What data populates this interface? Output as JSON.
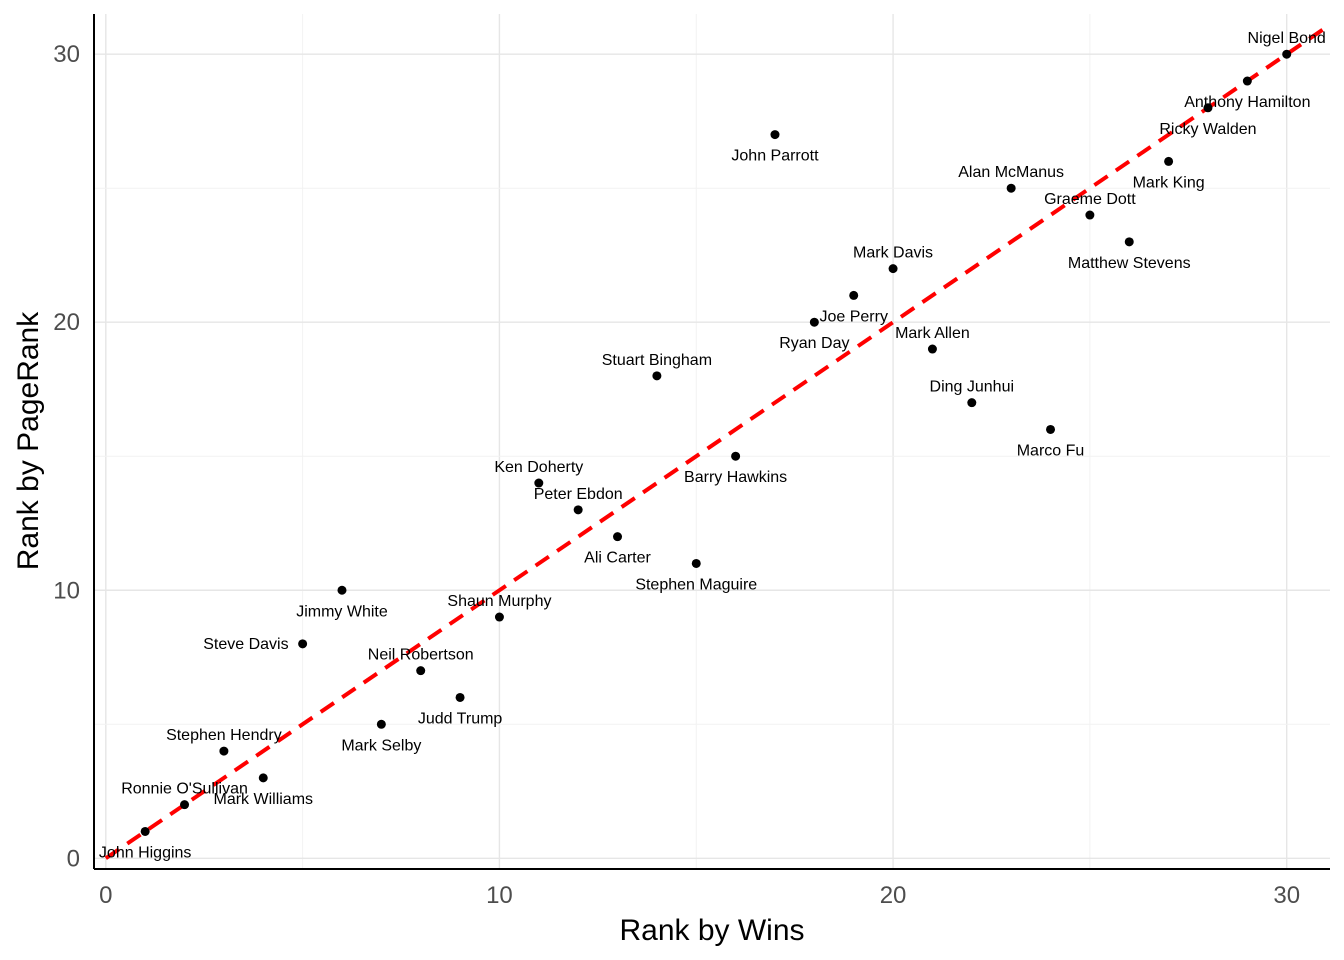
{
  "chart_data": {
    "type": "scatter",
    "xlabel": "Rank by Wins",
    "ylabel": "Rank by PageRank",
    "xlim": [
      -0.3,
      31.1
    ],
    "ylim": [
      -0.4,
      31.5
    ],
    "x_ticks": [
      0,
      10,
      20,
      30
    ],
    "y_ticks": [
      0,
      10,
      20,
      30
    ],
    "grid": true,
    "reference_line": {
      "type": "y=x",
      "color": "#ff0000",
      "style": "dashed",
      "range": [
        0,
        31
      ]
    },
    "points": [
      {
        "x": 1,
        "y": 1,
        "label": "John Higgins",
        "pos": "below"
      },
      {
        "x": 2,
        "y": 2,
        "label": "Ronnie O'Sullivan",
        "pos": "above"
      },
      {
        "x": 3,
        "y": 4,
        "label": "Stephen Hendry",
        "pos": "above"
      },
      {
        "x": 4,
        "y": 3,
        "label": "Mark Williams",
        "pos": "below"
      },
      {
        "x": 5,
        "y": 8,
        "label": "Steve Davis",
        "pos": "left"
      },
      {
        "x": 6,
        "y": 10,
        "label": "Jimmy White",
        "pos": "below"
      },
      {
        "x": 7,
        "y": 5,
        "label": "Mark Selby",
        "pos": "below"
      },
      {
        "x": 8,
        "y": 7,
        "label": "Neil Robertson",
        "pos": "above"
      },
      {
        "x": 9,
        "y": 6,
        "label": "Judd Trump",
        "pos": "below"
      },
      {
        "x": 10,
        "y": 9,
        "label": "Shaun Murphy",
        "pos": "above"
      },
      {
        "x": 11,
        "y": 14,
        "label": "Ken Doherty",
        "pos": "above"
      },
      {
        "x": 12,
        "y": 13,
        "label": "Peter Ebdon",
        "pos": "above"
      },
      {
        "x": 13,
        "y": 12,
        "label": "Ali Carter",
        "pos": "below"
      },
      {
        "x": 14,
        "y": 18,
        "label": "Stuart Bingham",
        "pos": "above"
      },
      {
        "x": 15,
        "y": 11,
        "label": "Stephen Maguire",
        "pos": "below"
      },
      {
        "x": 16,
        "y": 15,
        "label": "Barry Hawkins",
        "pos": "below"
      },
      {
        "x": 17,
        "y": 27,
        "label": "John Parrott",
        "pos": "below"
      },
      {
        "x": 18,
        "y": 20,
        "label": "Ryan Day",
        "pos": "below"
      },
      {
        "x": 19,
        "y": 21,
        "label": "Joe Perry",
        "pos": "below"
      },
      {
        "x": 20,
        "y": 22,
        "label": "Mark Davis",
        "pos": "above"
      },
      {
        "x": 21,
        "y": 19,
        "label": "Mark Allen",
        "pos": "above"
      },
      {
        "x": 22,
        "y": 17,
        "label": "Ding Junhui",
        "pos": "above"
      },
      {
        "x": 23,
        "y": 25,
        "label": "Alan McManus",
        "pos": "above"
      },
      {
        "x": 24,
        "y": 16,
        "label": "Marco Fu",
        "pos": "below"
      },
      {
        "x": 25,
        "y": 24,
        "label": "Graeme Dott",
        "pos": "above"
      },
      {
        "x": 26,
        "y": 23,
        "label": "Matthew Stevens",
        "pos": "below"
      },
      {
        "x": 27,
        "y": 26,
        "label": "Mark King",
        "pos": "below"
      },
      {
        "x": 28,
        "y": 28,
        "label": "Ricky Walden",
        "pos": "below"
      },
      {
        "x": 29,
        "y": 29,
        "label": "Anthony Hamilton",
        "pos": "below"
      },
      {
        "x": 30,
        "y": 30,
        "label": "Nigel Bond",
        "pos": "above"
      }
    ]
  }
}
